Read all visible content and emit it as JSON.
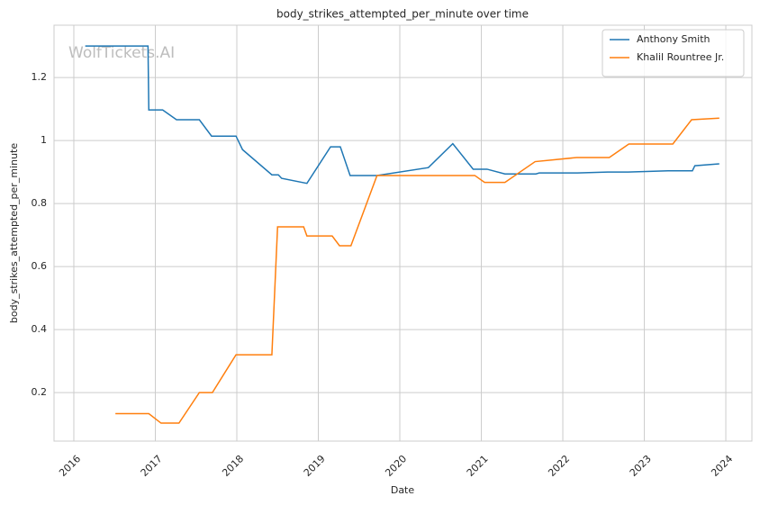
{
  "chart_data": {
    "type": "line",
    "title": "body_strikes_attempted_per_minute over time",
    "xlabel": "Date",
    "ylabel": "body_strikes_attempted_per_minute",
    "watermark": "WolfTickets.AI",
    "xlim": [
      2015.757,
      2024.32
    ],
    "xticks": [
      2016,
      2017,
      2018,
      2019,
      2020,
      2021,
      2022,
      2023,
      2024
    ],
    "ylim": [
      0.046,
      1.366
    ],
    "yticks": [
      0.2,
      0.4,
      0.6,
      0.8,
      1.0,
      1.2
    ],
    "grid": true,
    "legend": "upper right",
    "series": [
      {
        "name": "Anthony Smith",
        "color": "#1f77b4",
        "x": [
          2016.14,
          2016.91,
          2016.92,
          2017.09,
          2017.26,
          2017.54,
          2017.69,
          2017.99,
          2018.07,
          2018.43,
          2018.51,
          2018.55,
          2018.86,
          2019.15,
          2019.27,
          2019.39,
          2019.72,
          2020.35,
          2020.65,
          2020.9,
          2021.07,
          2021.29,
          2021.67,
          2021.71,
          2022.18,
          2022.55,
          2022.8,
          2023.29,
          2023.59,
          2023.62,
          2023.92
        ],
        "values": [
          1.3,
          1.3,
          1.097,
          1.097,
          1.066,
          1.066,
          1.014,
          1.014,
          0.971,
          0.891,
          0.891,
          0.88,
          0.864,
          0.98,
          0.98,
          0.889,
          0.889,
          0.914,
          0.99,
          0.909,
          0.909,
          0.894,
          0.894,
          0.897,
          0.897,
          0.9,
          0.9,
          0.904,
          0.904,
          0.92,
          0.926
        ]
      },
      {
        "name": "Khalil Rountree Jr.",
        "color": "#ff7f0e",
        "x": [
          2016.51,
          2016.92,
          2017.07,
          2017.29,
          2017.54,
          2017.7,
          2017.99,
          2018.43,
          2018.5,
          2018.82,
          2018.86,
          2019.17,
          2019.26,
          2019.4,
          2019.72,
          2020.92,
          2021.04,
          2021.29,
          2021.66,
          2022.17,
          2022.57,
          2022.81,
          2023.35,
          2023.58,
          2023.92
        ],
        "values": [
          0.133,
          0.133,
          0.103,
          0.103,
          0.2,
          0.2,
          0.32,
          0.32,
          0.726,
          0.726,
          0.697,
          0.697,
          0.666,
          0.666,
          0.889,
          0.889,
          0.867,
          0.867,
          0.933,
          0.946,
          0.946,
          0.989,
          0.989,
          1.066,
          1.071
        ]
      }
    ]
  }
}
